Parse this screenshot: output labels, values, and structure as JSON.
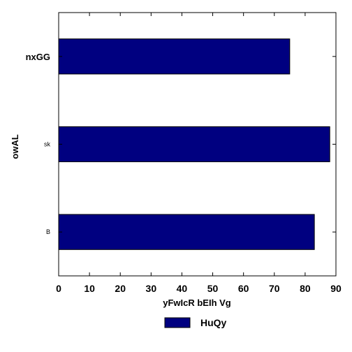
{
  "chart_data": {
    "type": "bar",
    "orientation": "horizontal",
    "categories": [
      "nxGG",
      "sk",
      "B"
    ],
    "series": [
      {
        "name": "HuQy",
        "values": [
          75,
          88,
          83
        ],
        "color": "#000080"
      }
    ],
    "xlabel": "yFwIcR bEIh Vg",
    "ylabel": "owAL",
    "xlim": [
      0,
      90
    ],
    "xticks": [
      0,
      10,
      20,
      30,
      40,
      50,
      60,
      70,
      80,
      90
    ],
    "grid": false,
    "legend_position": "bottom-center"
  }
}
